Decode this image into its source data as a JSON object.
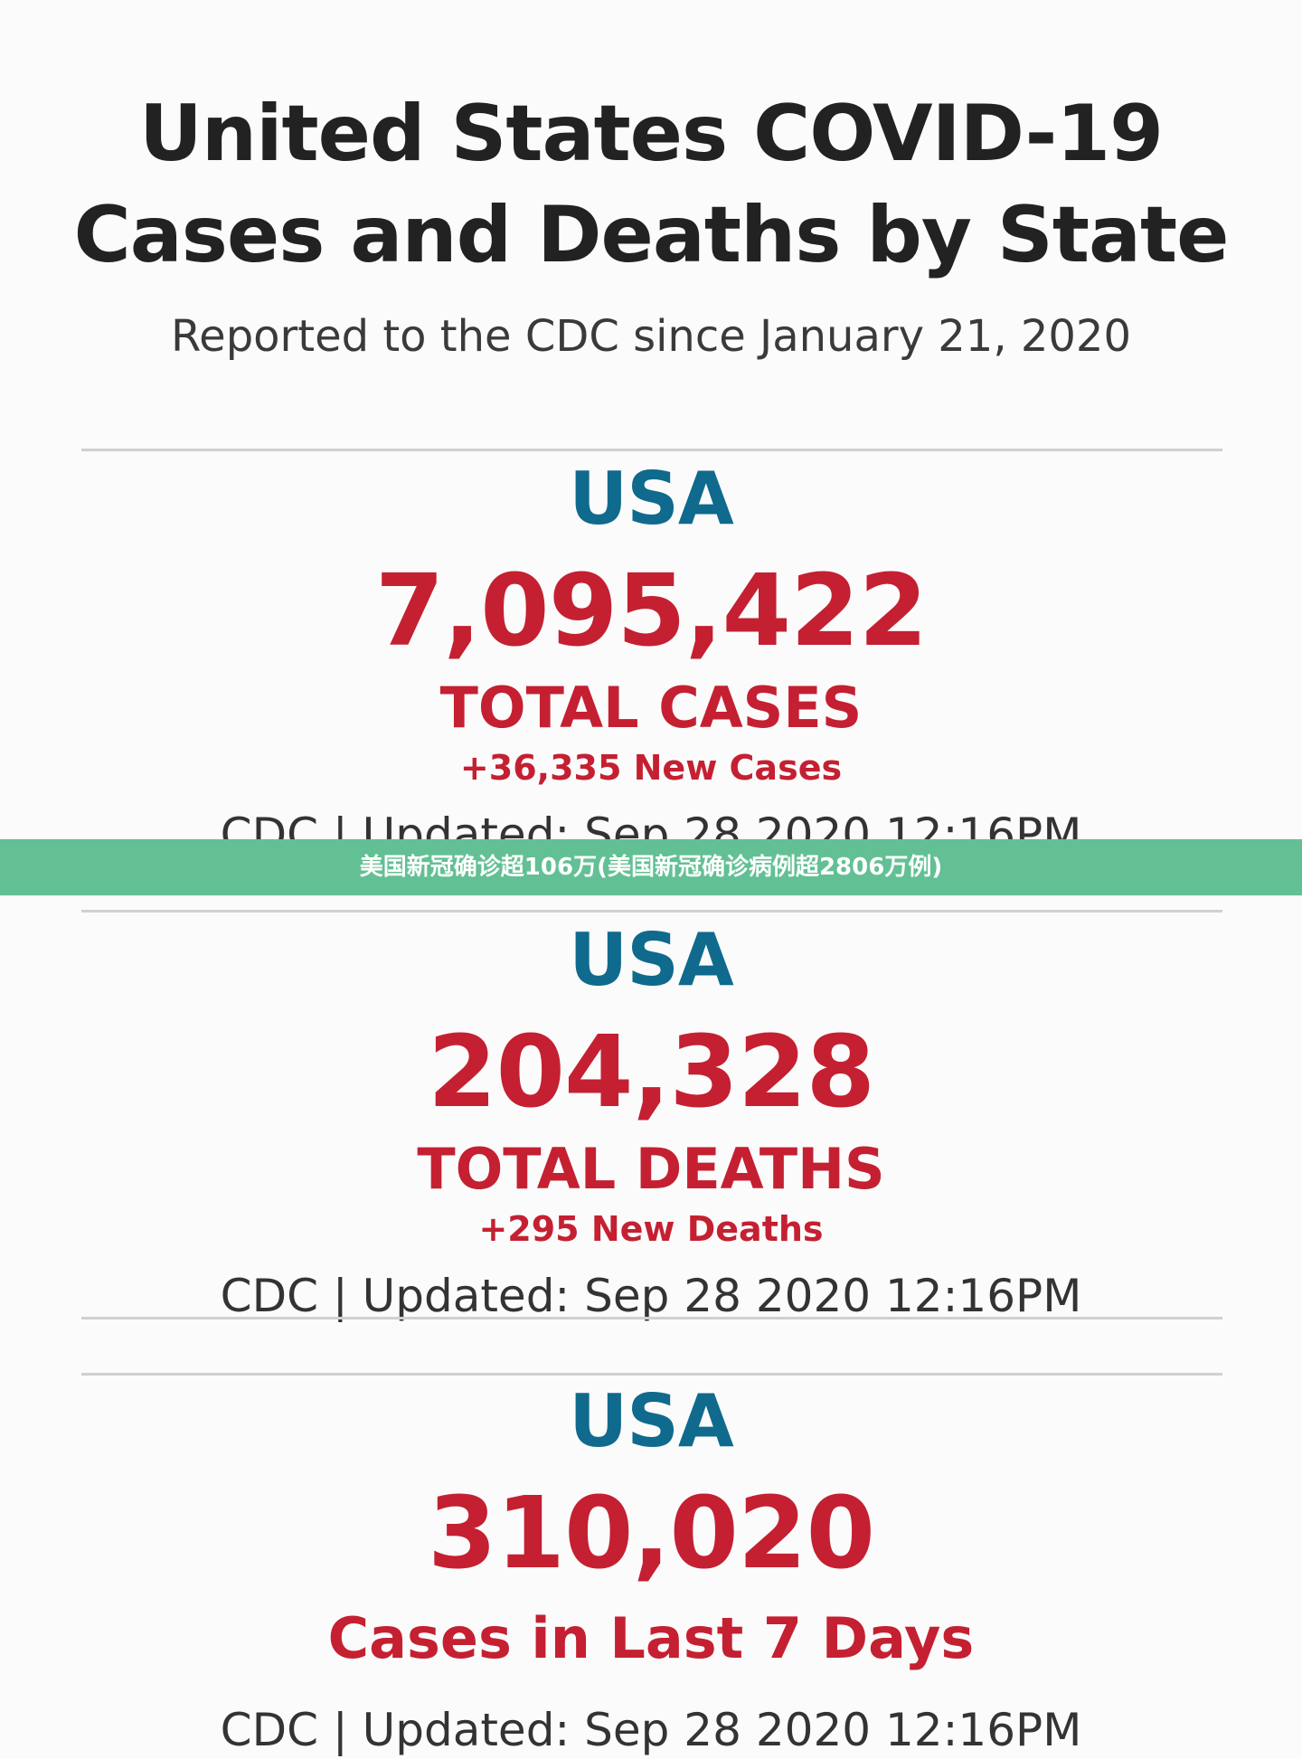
{
  "page": {
    "title": "United States COVID-19 Cases and Deaths by State",
    "subtitle": "Reported to the CDC since January 21, 2020"
  },
  "overlay": {
    "text": "美国新冠确诊超106万(美国新冠确诊病例超2806万例)"
  },
  "stats": [
    {
      "region": "USA",
      "number": "7,095,422",
      "label": "TOTAL CASES",
      "delta": "+36,335 New Cases",
      "source": "CDC | Updated: Sep 28 2020 12:16PM"
    },
    {
      "region": "USA",
      "number": "204,328",
      "label": "TOTAL DEATHS",
      "delta": "+295 New Deaths",
      "source": "CDC | Updated: Sep 28 2020 12:16PM"
    },
    {
      "region": "USA",
      "number": "310,020",
      "label": "Cases in Last 7 Days",
      "source": "CDC | Updated: Sep 28 2020 12:16PM"
    }
  ],
  "colors": {
    "background": "#fbfbfb",
    "title": "#222222",
    "region": "#0f6a8d",
    "accent": "#c42032",
    "banner": "#62c094"
  }
}
